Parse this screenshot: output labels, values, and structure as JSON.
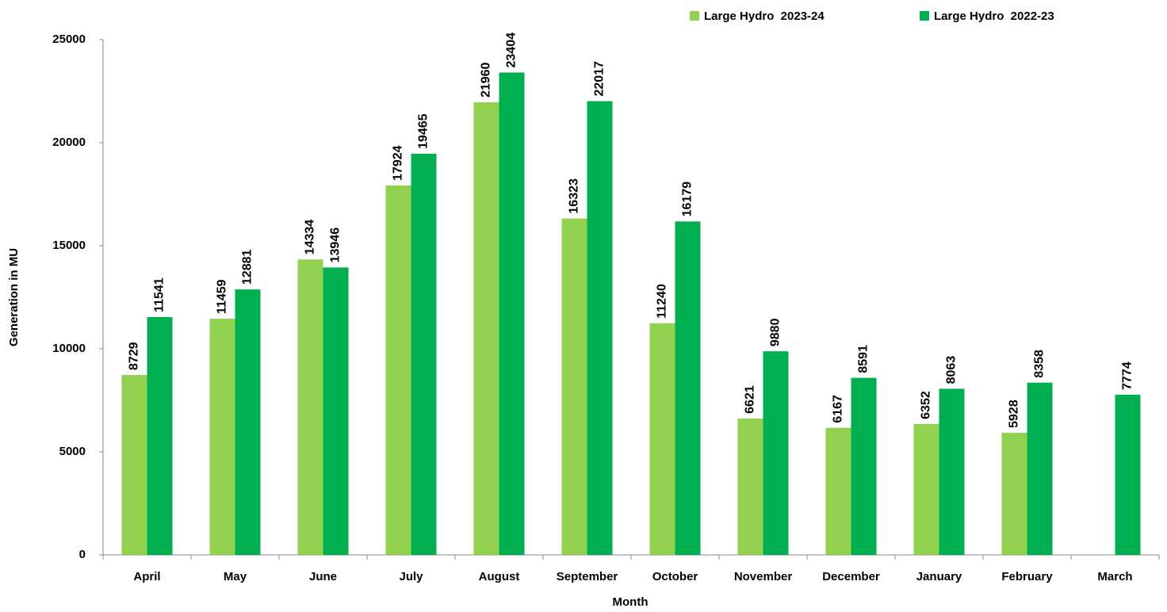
{
  "chart_data": {
    "type": "bar",
    "x_label": "Month",
    "y_label": "Generation in MU",
    "categories": [
      "April",
      "May",
      "June",
      "July",
      "August",
      "September",
      "October",
      "November",
      "December",
      "January",
      "February",
      "March"
    ],
    "series": [
      {
        "name": "Large Hydro  2023-24",
        "color": "#92d050",
        "values": [
          8729,
          11459,
          14334,
          17924,
          21960,
          16323,
          11240,
          6621,
          6167,
          6352,
          5928,
          null
        ]
      },
      {
        "name": "Large Hydro  2022-23",
        "color": "#00b050",
        "values": [
          11541,
          12881,
          13946,
          19465,
          23404,
          22017,
          16179,
          9880,
          8591,
          8063,
          8358,
          7774
        ]
      }
    ],
    "ylim": [
      0,
      25000
    ],
    "yticks": [
      0,
      5000,
      10000,
      15000,
      20000,
      25000
    ],
    "grid": false,
    "legend": "top-right"
  }
}
